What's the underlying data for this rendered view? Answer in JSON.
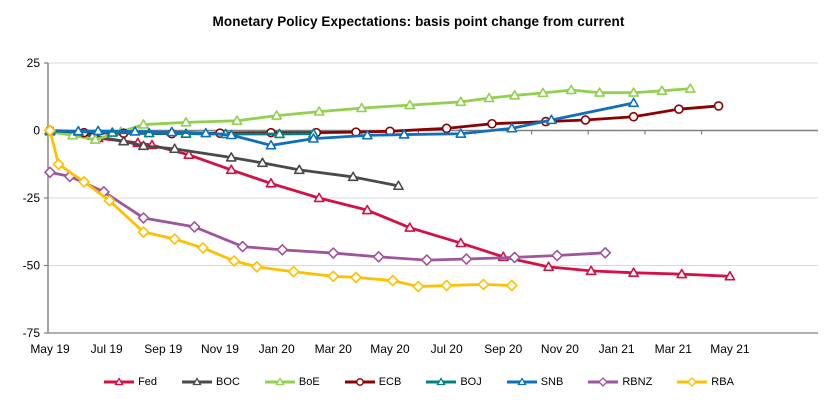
{
  "title": "Monetary Policy Expectations: basis point change from current",
  "chart_data": {
    "type": "line",
    "title": "Monetary Policy Expectations: basis point change from current",
    "xlabel": "",
    "ylabel": "basis point change from current",
    "x_unit": "months from May 2019",
    "x_tick_labels": [
      "May 19",
      "Jul 19",
      "Sep 19",
      "Nov 19",
      "Jan 20",
      "Mar 20",
      "May 20",
      "Jul 20",
      "Sep 20",
      "Nov 20",
      "Jan 21",
      "Mar 21",
      "May 21"
    ],
    "x_tick_months": [
      0,
      2,
      4,
      6,
      8,
      10,
      12,
      14,
      16,
      18,
      20,
      22,
      24
    ],
    "y_ticks": [
      25,
      0,
      -25,
      -50,
      -75
    ],
    "ylim": [
      -75,
      25
    ],
    "xlim_months": [
      0,
      24
    ],
    "grid": "faint horizontal gridlines at 25, -25, -50; dark horizontal axis at 0 with tick marks",
    "legend_position": "bottom",
    "style": {
      "axis_color": "#808080",
      "grid_color": "#d9d9d9",
      "marker_fill": "#ffffff"
    },
    "series": [
      {
        "name": "Fed",
        "color": "#d31145",
        "marker": "triangle",
        "points": [
          [
            0,
            0
          ],
          [
            1,
            -0.8
          ],
          [
            1.7,
            -2.8
          ],
          [
            3.1,
            -4.6
          ],
          [
            3.6,
            -5.4
          ],
          [
            4.9,
            -9
          ],
          [
            6.4,
            -14.6
          ],
          [
            7.8,
            -19.6
          ],
          [
            9.5,
            -25
          ],
          [
            11.2,
            -29.5
          ],
          [
            12.7,
            -36
          ],
          [
            14.5,
            -41.7
          ],
          [
            16,
            -46.8
          ],
          [
            17.6,
            -50.5
          ],
          [
            19.1,
            -52
          ],
          [
            20.6,
            -52.7
          ],
          [
            22.3,
            -53.2
          ],
          [
            24,
            -54
          ]
        ]
      },
      {
        "name": "BOC",
        "color": "#4a4a4a",
        "marker": "triangle",
        "points": [
          [
            0,
            0
          ],
          [
            1,
            -0.6
          ],
          [
            1.5,
            -2
          ],
          [
            2.6,
            -4
          ],
          [
            3.3,
            -5.7
          ],
          [
            4.4,
            -6.8
          ],
          [
            6.4,
            -10
          ],
          [
            7.5,
            -12
          ],
          [
            8.8,
            -14.6
          ],
          [
            10.7,
            -17.2
          ],
          [
            12.3,
            -20.5
          ]
        ]
      },
      {
        "name": "BoE",
        "color": "#92d050",
        "marker": "triangle",
        "points": [
          [
            0,
            -0.5
          ],
          [
            0.8,
            -1.8
          ],
          [
            1.6,
            -3.4
          ],
          [
            2.5,
            -0.5
          ],
          [
            3.3,
            2.2
          ],
          [
            4.8,
            3
          ],
          [
            6.6,
            3.6
          ],
          [
            8,
            5.5
          ],
          [
            9.5,
            7
          ],
          [
            11,
            8.3
          ],
          [
            12.7,
            9.4
          ],
          [
            14.5,
            10.6
          ],
          [
            15.5,
            12
          ],
          [
            16.4,
            13
          ],
          [
            17.4,
            13.9
          ],
          [
            18.4,
            15
          ],
          [
            19.4,
            14
          ],
          [
            20.6,
            14
          ],
          [
            21.6,
            14.7
          ],
          [
            22.6,
            15.5
          ]
        ]
      },
      {
        "name": "ECB",
        "color": "#8b0000",
        "marker": "circle",
        "points": [
          [
            0,
            0
          ],
          [
            1.2,
            -0.8
          ],
          [
            2.6,
            -1
          ],
          [
            4.3,
            -1.2
          ],
          [
            6,
            -1
          ],
          [
            7.8,
            -0.8
          ],
          [
            9.4,
            -0.8
          ],
          [
            10.8,
            -0.6
          ],
          [
            12,
            -0.3
          ],
          [
            14,
            0.8
          ],
          [
            15.6,
            2.5
          ],
          [
            17.5,
            3.3
          ],
          [
            18.9,
            3.9
          ],
          [
            20.6,
            5.1
          ],
          [
            22.2,
            7.9
          ],
          [
            23.6,
            9.1
          ]
        ]
      },
      {
        "name": "BOJ",
        "color": "#008080",
        "marker": "triangle",
        "points": [
          [
            0,
            -0.2
          ],
          [
            1,
            -0.4
          ],
          [
            2.2,
            -0.8
          ],
          [
            3.5,
            -1
          ],
          [
            4.8,
            -1.2
          ],
          [
            6.2,
            -1.3
          ],
          [
            8.1,
            -1.3
          ],
          [
            9.3,
            -1.2
          ]
        ]
      },
      {
        "name": "SNB",
        "color": "#0d6fc0",
        "marker": "triangle",
        "points": [
          [
            0,
            0
          ],
          [
            1,
            -0.3
          ],
          [
            1.7,
            -0.2
          ],
          [
            3,
            -0.4
          ],
          [
            4.3,
            -0.6
          ],
          [
            5.5,
            -1
          ],
          [
            6.4,
            -1.7
          ],
          [
            7.8,
            -5.5
          ],
          [
            9.3,
            -3
          ],
          [
            11.2,
            -1.8
          ],
          [
            12.5,
            -1.5
          ],
          [
            14.5,
            -1.2
          ],
          [
            16.3,
            0.8
          ],
          [
            17.7,
            3.9
          ],
          [
            20.6,
            10.2
          ]
        ]
      },
      {
        "name": "RBNZ",
        "color": "#9e559c",
        "marker": "diamond",
        "points": [
          [
            0,
            -15.5
          ],
          [
            0.7,
            -17
          ],
          [
            1.9,
            -22.7
          ],
          [
            3.3,
            -32.4
          ],
          [
            5.1,
            -35.7
          ],
          [
            6.8,
            -43
          ],
          [
            8.2,
            -44.2
          ],
          [
            10,
            -45.4
          ],
          [
            11.6,
            -46.8
          ],
          [
            13.3,
            -48
          ],
          [
            14.7,
            -47.6
          ],
          [
            16.4,
            -47
          ],
          [
            17.9,
            -46.3
          ],
          [
            19.6,
            -45.3
          ]
        ]
      },
      {
        "name": "RBA",
        "color": "#ffc000",
        "marker": "diamond",
        "points": [
          [
            0,
            0
          ],
          [
            0.3,
            -12.5
          ],
          [
            1.2,
            -19
          ],
          [
            2.1,
            -26
          ],
          [
            3.3,
            -37.6
          ],
          [
            4.4,
            -40.2
          ],
          [
            5.4,
            -43.5
          ],
          [
            6.5,
            -48.3
          ],
          [
            7.3,
            -50.5
          ],
          [
            8.6,
            -52.3
          ],
          [
            10,
            -54
          ],
          [
            10.8,
            -54.4
          ],
          [
            12.1,
            -55.6
          ],
          [
            13,
            -57.8
          ],
          [
            14,
            -57.4
          ],
          [
            15.3,
            -57
          ],
          [
            16.3,
            -57.4
          ]
        ]
      }
    ]
  },
  "legend": {
    "items": [
      "Fed",
      "BOC",
      "BoE",
      "ECB",
      "BOJ",
      "SNB",
      "RBNZ",
      "RBA"
    ]
  }
}
